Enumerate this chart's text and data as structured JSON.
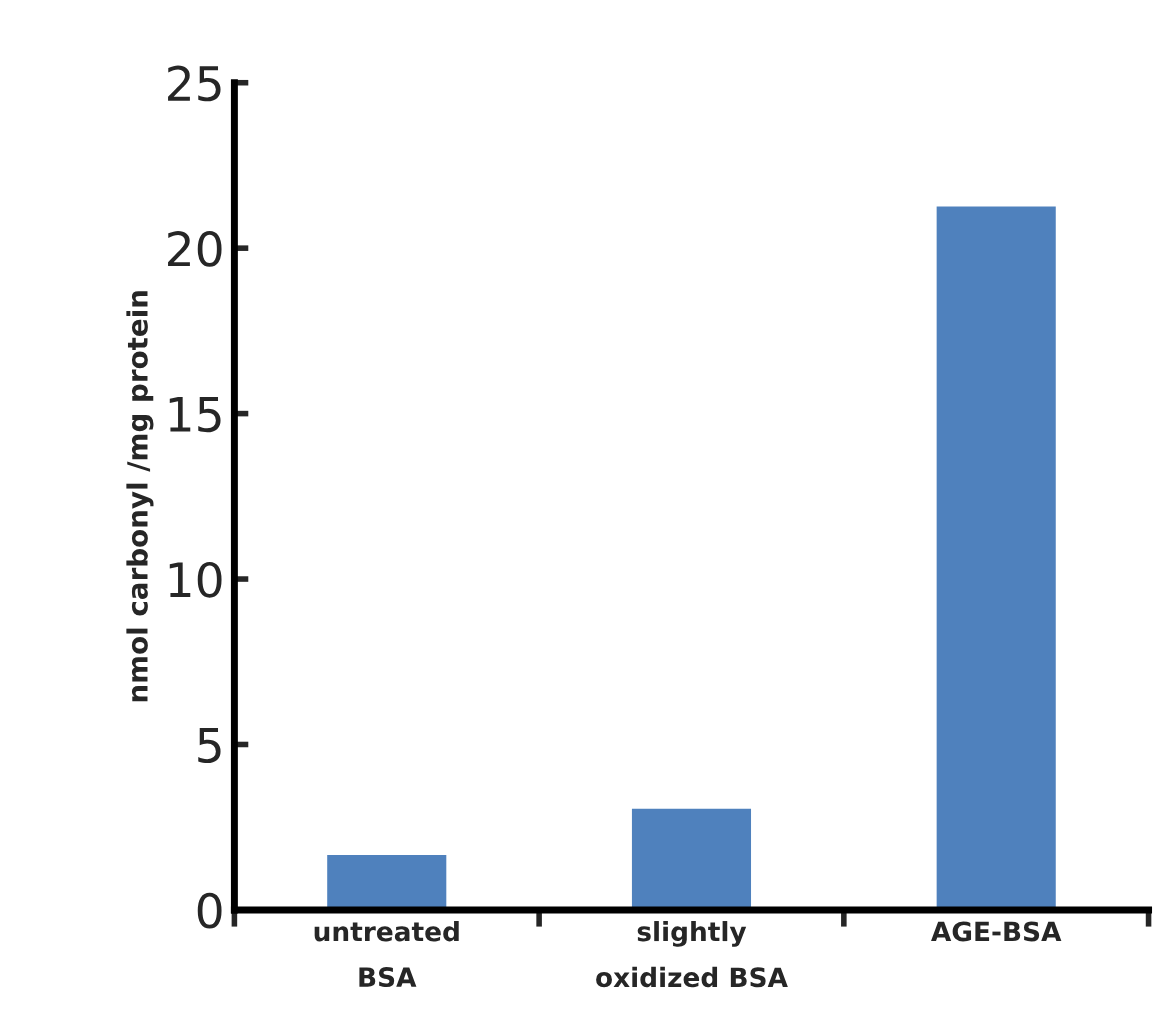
{
  "chart_data": {
    "type": "bar",
    "ylabel": "nmol carbonyl /mg protein",
    "categories": [
      "untreated\nBSA",
      "slightly\noxidized BSA",
      "AGE-BSA"
    ],
    "values": [
      1.7,
      3.1,
      21.3
    ],
    "color": "#4f81bd",
    "ylim": [
      0,
      25
    ],
    "yticks": [
      0,
      5,
      10,
      15,
      20,
      25
    ],
    "grid": false,
    "legend": false
  }
}
